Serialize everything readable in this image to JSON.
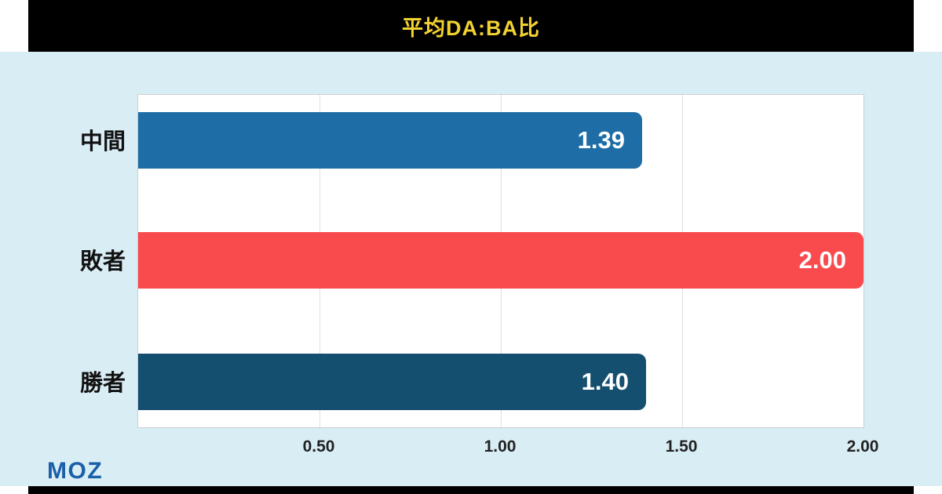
{
  "header": {
    "title": "平均DA:BA比",
    "bg_color": "#000000",
    "title_color": "#f2d230"
  },
  "footer": {
    "logo_text": "MOZ",
    "logo_color": "#1b5fa8"
  },
  "chart_data": {
    "type": "bar",
    "orientation": "horizontal",
    "title": "平均DA:BA比",
    "categories": [
      "中間",
      "敗者",
      "勝者"
    ],
    "values": [
      1.39,
      2.0,
      1.4
    ],
    "value_labels": [
      "1.39",
      "2.00",
      "1.40"
    ],
    "bar_colors": [
      "#1e6da6",
      "#f94b4e",
      "#154f70"
    ],
    "xlim": [
      0,
      2.0
    ],
    "x_ticks": [
      {
        "value": 0.5,
        "label": "0.50"
      },
      {
        "value": 1.0,
        "label": "1.00"
      },
      {
        "value": 1.5,
        "label": "1.50"
      },
      {
        "value": 2.0,
        "label": "2.00"
      }
    ],
    "grid": true,
    "legend": false,
    "plot_bg": "#ffffff",
    "page_bg": "#d9edf5",
    "value_label_color": "#ffffff"
  }
}
